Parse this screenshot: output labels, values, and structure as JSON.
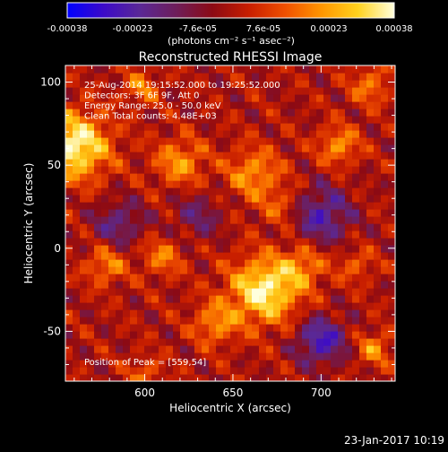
{
  "chart_data": {
    "type": "heatmap",
    "title": "Reconstructed RHESSI Image",
    "xlabel": "Heliocentric X (arcsec)",
    "ylabel": "Heliocentric Y (arcsec)",
    "xlim": [
      555,
      742
    ],
    "ylim": [
      -80,
      110
    ],
    "x_ticks": [
      600,
      650,
      700
    ],
    "y_ticks": [
      -50,
      0,
      50,
      100
    ],
    "x_tick_labels": [
      "600",
      "650",
      "700"
    ],
    "y_tick_labels": [
      "-50",
      "0",
      "50",
      "100"
    ],
    "grid": false,
    "colorbar": {
      "range": [
        -0.00038,
        0.00038
      ],
      "tick_labels": [
        "-0.00038",
        "-0.00023",
        "-7.6e-05",
        "7.6e-05",
        "0.00023",
        "0.00038"
      ],
      "units_label": "(photons cm⁻² s⁻¹ asec⁻²)",
      "colors": [
        "#0000ff",
        "#3c0ac8",
        "#5a2896",
        "#6e1e5a",
        "#8c0a14",
        "#c81e00",
        "#f05000",
        "#ff9600",
        "#ffd21e",
        "#ffffdc"
      ]
    },
    "annotations": [
      "25-Aug-2014 19:15:52.000 to 19:25:52.000",
      "Detectors: 3F 6F 9F, Att 0",
      "Energy Range: 25.0 - 50.0 keV",
      "Clean     Total counts: 4.48E+03"
    ],
    "peak_label": "Position of Peak = [559,54]",
    "peak": [
      559,
      54
    ],
    "sources": [
      {
        "x": 560,
        "y": 62,
        "amp": 1.0,
        "sigma": 14
      },
      {
        "x": 598,
        "y": 97,
        "amp": 0.45,
        "sigma": 7
      },
      {
        "x": 620,
        "y": 52,
        "amp": 0.55,
        "sigma": 10
      },
      {
        "x": 662,
        "y": 45,
        "amp": 0.55,
        "sigma": 11
      },
      {
        "x": 678,
        "y": 25,
        "amp": 0.35,
        "sigma": 8
      },
      {
        "x": 710,
        "y": 62,
        "amp": 0.55,
        "sigma": 8
      },
      {
        "x": 728,
        "y": 98,
        "amp": 0.45,
        "sigma": 8
      },
      {
        "x": 668,
        "y": -25,
        "amp": 0.95,
        "sigma": 14
      },
      {
        "x": 640,
        "y": -45,
        "amp": 0.5,
        "sigma": 9
      },
      {
        "x": 690,
        "y": -10,
        "amp": 0.45,
        "sigma": 9
      },
      {
        "x": 578,
        "y": -10,
        "amp": 0.5,
        "sigma": 8
      },
      {
        "x": 610,
        "y": -5,
        "amp": 0.45,
        "sigma": 8
      },
      {
        "x": 730,
        "y": -60,
        "amp": 0.5,
        "sigma": 7
      },
      {
        "x": 720,
        "y": -10,
        "amp": 0.35,
        "sigma": 7
      },
      {
        "x": 600,
        "y": -75,
        "amp": 0.35,
        "sigma": 7
      },
      {
        "x": 700,
        "y": 20,
        "amp": -0.6,
        "sigma": 12
      },
      {
        "x": 700,
        "y": -55,
        "amp": -0.7,
        "sigma": 10
      },
      {
        "x": 585,
        "y": 15,
        "amp": -0.45,
        "sigma": 10
      },
      {
        "x": 630,
        "y": 20,
        "amp": -0.35,
        "sigma": 10
      }
    ]
  },
  "footer": {
    "date": "23-Jan-2017 10:19"
  }
}
